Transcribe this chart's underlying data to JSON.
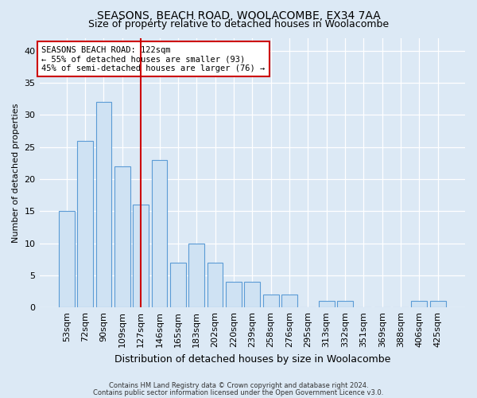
{
  "title1": "SEASONS, BEACH ROAD, WOOLACOMBE, EX34 7AA",
  "title2": "Size of property relative to detached houses in Woolacombe",
  "xlabel": "Distribution of detached houses by size in Woolacombe",
  "ylabel": "Number of detached properties",
  "categories": [
    "53sqm",
    "72sqm",
    "90sqm",
    "109sqm",
    "127sqm",
    "146sqm",
    "165sqm",
    "183sqm",
    "202sqm",
    "220sqm",
    "239sqm",
    "258sqm",
    "276sqm",
    "295sqm",
    "313sqm",
    "332sqm",
    "351sqm",
    "369sqm",
    "388sqm",
    "406sqm",
    "425sqm"
  ],
  "values": [
    15,
    26,
    32,
    22,
    16,
    23,
    7,
    10,
    7,
    4,
    4,
    2,
    2,
    0,
    1,
    1,
    0,
    0,
    0,
    1,
    1
  ],
  "bar_color": "#cfe2f3",
  "bar_edge_color": "#5b9bd5",
  "vline_index": 4,
  "vline_color": "#cc0000",
  "annotation_text": "SEASONS BEACH ROAD: 122sqm\n← 55% of detached houses are smaller (93)\n45% of semi-detached houses are larger (76) →",
  "annotation_box_color": "#ffffff",
  "annotation_box_edge": "#cc0000",
  "ylim": [
    0,
    42
  ],
  "yticks": [
    0,
    5,
    10,
    15,
    20,
    25,
    30,
    35,
    40
  ],
  "footer1": "Contains HM Land Registry data © Crown copyright and database right 2024.",
  "footer2": "Contains public sector information licensed under the Open Government Licence v3.0.",
  "bg_color": "#dce9f5",
  "plot_bg_color": "#dce9f5",
  "title1_fontsize": 10,
  "title2_fontsize": 9,
  "ylabel_fontsize": 8,
  "xlabel_fontsize": 9,
  "tick_fontsize": 8,
  "annot_fontsize": 7.5,
  "footer_fontsize": 6
}
